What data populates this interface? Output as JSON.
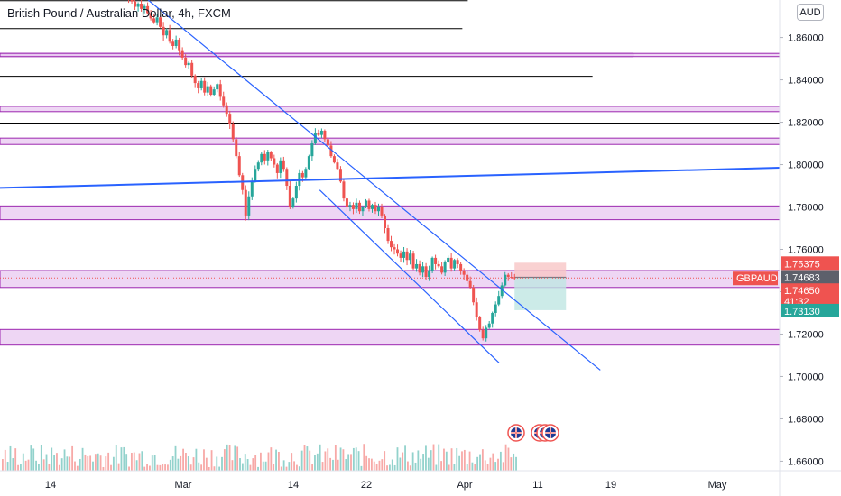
{
  "header": {
    "title": "British Pound / Australian Dollar, 4h, FXCM",
    "currency": "AUD"
  },
  "chart_data": {
    "type": "candlestick",
    "symbol": "GBPAUD",
    "interval": "4h",
    "y_axis": {
      "ticks": [
        "1.86000",
        "1.84000",
        "1.82000",
        "1.80000",
        "1.78000",
        "1.76000",
        "1.74000",
        "1.72000",
        "1.70000",
        "1.68000",
        "1.66000"
      ],
      "ylim": [
        1.6555,
        1.8777
      ]
    },
    "x_axis": {
      "ticks": [
        "14",
        "Mar",
        "14",
        "22",
        "Apr",
        "11",
        "19",
        "May"
      ]
    },
    "price_labels": {
      "take_profit": "1.75375",
      "entry": "1.74683",
      "symbol_tag": "GBPAUD",
      "current": "1.74650",
      "countdown": "41:32",
      "stop": "1.73130"
    },
    "colors": {
      "up": "#26a69a",
      "down": "#ef5350",
      "zone_fill": "#e8c8f0",
      "zone_border": "#9c27b0",
      "trendline": "#2962ff",
      "level_line": "#000000",
      "risk": "#f7c6c6",
      "reward": "#bfe6e2",
      "label_grey": "#5d606b",
      "label_teal": "#26a69a",
      "label_red": "#ef5350"
    },
    "zones": [
      [
        1.8525,
        1.851
      ],
      [
        1.8275,
        1.825
      ],
      [
        1.8125,
        1.8095
      ],
      [
        1.7805,
        1.774
      ],
      [
        1.75,
        1.742
      ],
      [
        1.7222,
        1.7148
      ]
    ],
    "levels": [
      {
        "price": 1.8774,
        "x_end": 0.6
      },
      {
        "price": 1.8642,
        "x_end": 0.593
      },
      {
        "price": 1.8417,
        "x_end": 0.76
      },
      {
        "price": 1.8196,
        "x_end": 1.0
      },
      {
        "price": 1.7932,
        "x_end": 0.898
      }
    ],
    "trendlines": [
      {
        "name": "horizontal-trendline",
        "p1": [
          0.0,
          1.789
        ],
        "p2": [
          1.0,
          1.7985
        ]
      },
      {
        "name": "channel-upper",
        "p1": [
          0.19,
          1.8777
        ],
        "p2": [
          0.77,
          1.703
        ]
      },
      {
        "name": "channel-lower",
        "p1": [
          0.41,
          1.788
        ],
        "p2": [
          0.64,
          1.7065
        ]
      }
    ],
    "position": {
      "entry": 1.7468,
      "take_profit": 1.7537,
      "stop": 1.7313,
      "x_start": 0.66,
      "x_end": 0.726
    },
    "candles_closes": [
      1.878,
      1.877,
      1.8745,
      1.876,
      1.8735,
      1.8748,
      1.8715,
      1.869,
      1.8672,
      1.8695,
      1.865,
      1.861,
      1.8635,
      1.858,
      1.856,
      1.859,
      1.854,
      1.8505,
      1.847,
      1.848,
      1.842,
      1.8385,
      1.836,
      1.8395,
      1.834,
      1.837,
      1.833,
      1.8355,
      1.838,
      1.832,
      1.828,
      1.824,
      1.819,
      1.812,
      1.804,
      1.795,
      1.788,
      1.776,
      1.785,
      1.792,
      1.798,
      1.801,
      1.805,
      1.802,
      1.806,
      1.803,
      1.8,
      1.796,
      1.802,
      1.798,
      1.79,
      1.78,
      1.784,
      1.79,
      1.796,
      1.794,
      1.798,
      1.804,
      1.81,
      1.815,
      1.814,
      1.816,
      1.812,
      1.809,
      1.804,
      1.801,
      1.798,
      1.792,
      1.784,
      1.78,
      1.781,
      1.779,
      1.782,
      1.778,
      1.78,
      1.783,
      1.779,
      1.781,
      1.778,
      1.78,
      1.776,
      1.77,
      1.764,
      1.761,
      1.76,
      1.758,
      1.756,
      1.759,
      1.755,
      1.758,
      1.751,
      1.753,
      1.749,
      1.752,
      1.747,
      1.75,
      1.756,
      1.753,
      1.752,
      1.749,
      1.754,
      1.756,
      1.751,
      1.755,
      1.753,
      1.75,
      1.748,
      1.745,
      1.742,
      1.735,
      1.728,
      1.722,
      1.718,
      1.723,
      1.725,
      1.73,
      1.734,
      1.738,
      1.743,
      1.748,
      1.747,
      1.7468,
      1.7465
    ]
  },
  "events": {
    "icons": [
      "uk-flag-icon",
      "uk-flag-icon",
      "uk-flag-icon",
      "uk-flag-icon"
    ]
  }
}
